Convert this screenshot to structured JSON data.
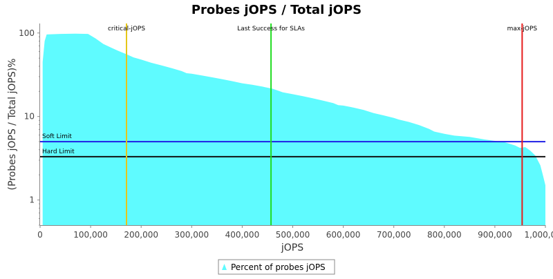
{
  "chart_data": {
    "type": "area",
    "title": "Probes jOPS / Total jOPS",
    "xlabel": "jOPS",
    "ylabel": "(Probes jOPS / Total jOPS)%",
    "y_scale": "log",
    "xlim": [
      0,
      1000000
    ],
    "ylim": [
      0.5,
      130
    ],
    "x_ticks": [
      {
        "value": 0,
        "label": "0"
      },
      {
        "value": 100000,
        "label": "100,000"
      },
      {
        "value": 200000,
        "label": "200,000"
      },
      {
        "value": 300000,
        "label": "300,000"
      },
      {
        "value": 400000,
        "label": "400,000"
      },
      {
        "value": 500000,
        "label": "500,000"
      },
      {
        "value": 600000,
        "label": "600,000"
      },
      {
        "value": 700000,
        "label": "700,000"
      },
      {
        "value": 800000,
        "label": "800,000"
      },
      {
        "value": 900000,
        "label": "900,000"
      },
      {
        "value": 1000000,
        "label": "1,000,000"
      }
    ],
    "y_ticks": [
      {
        "value": 1,
        "label": "1"
      },
      {
        "value": 10,
        "label": "10"
      },
      {
        "value": 100,
        "label": "100"
      }
    ],
    "series": [
      {
        "name": "Percent of probes jOPS",
        "color": "#5ffbff",
        "points": [
          [
            5000,
            45
          ],
          [
            9000,
            80
          ],
          [
            13000,
            96
          ],
          [
            40000,
            97.5
          ],
          [
            70000,
            98
          ],
          [
            95000,
            97.5
          ],
          [
            110000,
            86
          ],
          [
            125000,
            74
          ],
          [
            140000,
            67
          ],
          [
            155000,
            61
          ],
          [
            170000,
            56
          ],
          [
            185000,
            51
          ],
          [
            200000,
            48
          ],
          [
            220000,
            44
          ],
          [
            240000,
            41
          ],
          [
            260000,
            38
          ],
          [
            280000,
            35
          ],
          [
            290000,
            33
          ],
          [
            300000,
            32.5
          ],
          [
            320000,
            31
          ],
          [
            340000,
            29.5
          ],
          [
            360000,
            28
          ],
          [
            380000,
            26.5
          ],
          [
            400000,
            25
          ],
          [
            420000,
            24
          ],
          [
            440000,
            22.8
          ],
          [
            460000,
            21.5
          ],
          [
            470000,
            20.5
          ],
          [
            480000,
            19.5
          ],
          [
            500000,
            18.5
          ],
          [
            520000,
            17.5
          ],
          [
            540000,
            16.5
          ],
          [
            560000,
            15.5
          ],
          [
            580000,
            14.5
          ],
          [
            590000,
            13.7
          ],
          [
            600000,
            13.5
          ],
          [
            620000,
            12.8
          ],
          [
            640000,
            12
          ],
          [
            660000,
            11
          ],
          [
            680000,
            10.3
          ],
          [
            700000,
            9.6
          ],
          [
            710000,
            9.2
          ],
          [
            730000,
            8.6
          ],
          [
            750000,
            7.9
          ],
          [
            770000,
            7.1
          ],
          [
            780000,
            6.6
          ],
          [
            800000,
            6.2
          ],
          [
            820000,
            5.9
          ],
          [
            850000,
            5.7
          ],
          [
            880000,
            5.3
          ],
          [
            900000,
            5.1
          ],
          [
            920000,
            4.9
          ],
          [
            940000,
            4.5
          ],
          [
            950000,
            4.2
          ],
          [
            960000,
            4.3
          ],
          [
            970000,
            3.9
          ],
          [
            980000,
            3.4
          ],
          [
            990000,
            2.6
          ],
          [
            995000,
            2.0
          ],
          [
            1000000,
            1.5
          ]
        ]
      }
    ],
    "vertical_markers": [
      {
        "label": "critical-jOPS",
        "x": 171000,
        "color": "#e6c619"
      },
      {
        "label": "Last Success for SLAs",
        "x": 457000,
        "color": "#22dd22"
      },
      {
        "label": "max-jOPS",
        "x": 954000,
        "color": "#e61c1c"
      }
    ],
    "horizontal_markers": [
      {
        "label": "Soft Limit",
        "y": 5,
        "color": "#1f1fe6"
      },
      {
        "label": "Hard Limit",
        "y": 3.3,
        "color": "#111111"
      }
    ],
    "legend": {
      "position": "bottom",
      "label": "Percent of probes jOPS"
    },
    "grid": false
  }
}
